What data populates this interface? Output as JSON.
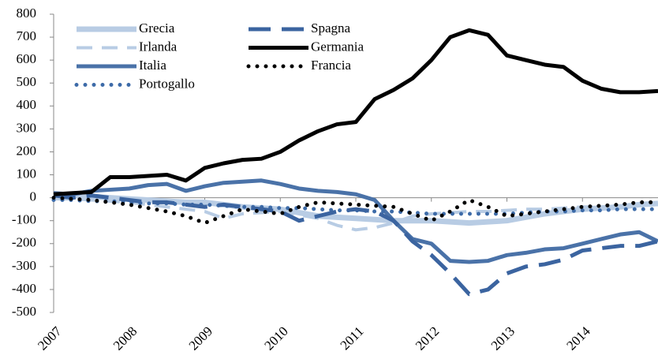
{
  "chart_data": {
    "type": "line",
    "x": [
      2007,
      2007.25,
      2007.5,
      2007.75,
      2008,
      2008.25,
      2008.5,
      2008.75,
      2009,
      2009.25,
      2009.5,
      2009.75,
      2010,
      2010.25,
      2010.5,
      2010.75,
      2011,
      2011.25,
      2011.5,
      2011.75,
      2012,
      2012.25,
      2012.5,
      2012.75,
      2013,
      2013.25,
      2013.5,
      2013.75,
      2014,
      2014.25,
      2014.5,
      2014.75,
      2015
    ],
    "series": [
      {
        "name": "Grecia",
        "color": "#b8cce4",
        "style": "solid",
        "values": [
          0,
          10,
          5,
          0,
          -5,
          -10,
          -15,
          -20,
          -20,
          -30,
          -40,
          -45,
          -50,
          -65,
          -80,
          -85,
          -90,
          -95,
          -100,
          -100,
          -100,
          -105,
          -110,
          -105,
          -100,
          -85,
          -70,
          -60,
          -50,
          -45,
          -40,
          -30,
          -25
        ]
      },
      {
        "name": "Irlanda",
        "color": "#b8cce4",
        "style": "dashed",
        "values": [
          -5,
          -5,
          -10,
          -15,
          -20,
          -30,
          -40,
          -50,
          -60,
          -90,
          -70,
          -65,
          -60,
          -75,
          -90,
          -120,
          -140,
          -130,
          -110,
          -80,
          -70,
          -65,
          -60,
          -60,
          -55,
          -50,
          -50,
          -45,
          -40,
          -40,
          -35,
          -30,
          -30
        ]
      },
      {
        "name": "Italia",
        "color": "#4a72a8",
        "style": "solid",
        "values": [
          20,
          15,
          30,
          35,
          40,
          55,
          60,
          30,
          50,
          65,
          70,
          75,
          60,
          40,
          30,
          25,
          15,
          -10,
          -100,
          -180,
          -200,
          -275,
          -280,
          -275,
          -250,
          -240,
          -225,
          -220,
          -200,
          -180,
          -160,
          -150,
          -190
        ]
      },
      {
        "name": "Portogallo",
        "color": "#3d6ba8",
        "style": "dotted",
        "values": [
          -10,
          -10,
          -15,
          -15,
          -20,
          -25,
          -25,
          -30,
          -30,
          -35,
          -40,
          -40,
          -45,
          -45,
          -50,
          -55,
          -55,
          -60,
          -60,
          -65,
          -70,
          -70,
          -70,
          -70,
          -70,
          -65,
          -60,
          -60,
          -55,
          -55,
          -50,
          -50,
          -50
        ]
      },
      {
        "name": "Spagna",
        "color": "#3b64a0",
        "style": "longdash",
        "values": [
          10,
          0,
          10,
          0,
          -10,
          -20,
          -20,
          -30,
          -40,
          -30,
          -40,
          -50,
          -60,
          -100,
          -80,
          -60,
          -50,
          -60,
          -100,
          -190,
          -250,
          -330,
          -420,
          -400,
          -330,
          -300,
          -290,
          -270,
          -230,
          -220,
          -210,
          -210,
          -190
        ]
      },
      {
        "name": "Germania",
        "color": "#000000",
        "style": "solid",
        "values": [
          15,
          20,
          25,
          90,
          90,
          95,
          100,
          75,
          130,
          150,
          165,
          170,
          200,
          250,
          290,
          320,
          330,
          430,
          470,
          520,
          600,
          700,
          730,
          710,
          620,
          600,
          580,
          570,
          510,
          475,
          460,
          460,
          465
        ]
      },
      {
        "name": "Francia",
        "color": "#000000",
        "style": "dotted",
        "values": [
          0,
          -5,
          -10,
          -20,
          -30,
          -45,
          -60,
          -80,
          -110,
          -80,
          -50,
          -60,
          -70,
          -40,
          -20,
          -25,
          -30,
          -35,
          -40,
          -70,
          -100,
          -60,
          -10,
          -40,
          -80,
          -70,
          -60,
          -50,
          -40,
          -35,
          -30,
          -20,
          -20
        ]
      }
    ],
    "xlim": [
      2007,
      2015
    ],
    "xticks": [
      2007,
      2008,
      2009,
      2010,
      2011,
      2012,
      2013,
      2014
    ],
    "ylim": [
      -500,
      800
    ],
    "yticks": [
      -500,
      -400,
      -300,
      -200,
      -100,
      0,
      100,
      200,
      300,
      400,
      500,
      600,
      700,
      800
    ],
    "legend": "upper left"
  }
}
